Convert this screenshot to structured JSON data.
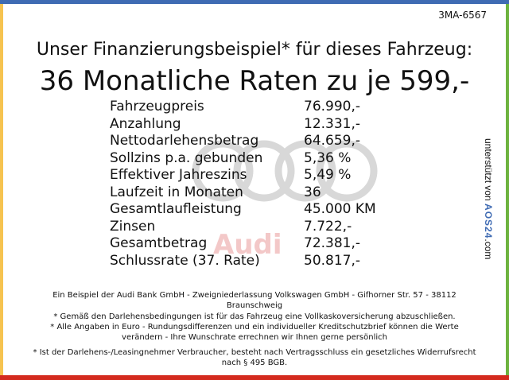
{
  "code": "3MA-6567",
  "headline": "Unser Finanzierungsbeispiel* für dieses Fahrzeug:",
  "rate_headline": "36 Monatliche Raten zu je 599,-",
  "watermark_text": "Audi",
  "rows": [
    {
      "label": "Fahrzeugpreis",
      "value": "76.990,-"
    },
    {
      "label": "Anzahlung",
      "value": "12.331,-"
    },
    {
      "label": "Nettodarlehensbetrag",
      "value": "64.659,-"
    },
    {
      "label": "Sollzins p.a. gebunden",
      "value": "5,36 %"
    },
    {
      "label": "Effektiver Jahreszins",
      "value": "5,49 %"
    },
    {
      "label": "Laufzeit in Monaten",
      "value": "36"
    },
    {
      "label": "Gesamtlaufleistung",
      "value": "45.000 KM"
    },
    {
      "label": "Zinsen",
      "value": "7.722,-"
    },
    {
      "label": "Gesamtbetrag",
      "value": "72.381,-"
    },
    {
      "label": "Schlussrate (37. Rate)",
      "value": "50.817,-"
    }
  ],
  "sponsor": {
    "prefix": "unterstützt von ",
    "brand": "AOS24",
    ".com": ".com",
    "suffix": ".com"
  },
  "footnotes": [
    "Ein Beispiel der Audi Bank GmbH - Zweigniederlassung Volkswagen GmbH - Gifhorner Str. 57 - 38112 Braunschweig",
    "* Gemäß den Darlehensbedingungen ist für das Fahrzeug eine Vollkaskoversicherung abzuschließen.",
    "* Alle Angaben in Euro - Rundungsdifferenzen und ein individueller Kreditschutzbrief können die Werte verändern - Ihre Wunschrate errechnen wir Ihnen gerne persönlich",
    "* Ist der Darlehens-/Leasingnehmer Verbraucher, besteht nach Vertragsschluss ein gesetzliches Widerrufsrecht nach § 495 BGB."
  ],
  "colors": {
    "top": "#3f6bb3",
    "left": "#f6c350",
    "right": "#6db33f",
    "bottom": "#d42a1e"
  }
}
